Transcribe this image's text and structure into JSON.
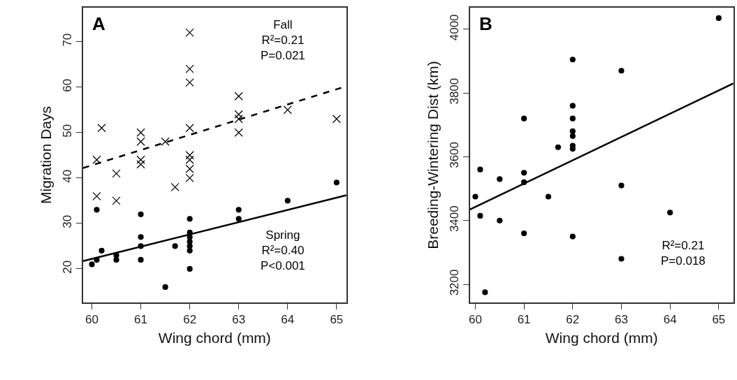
{
  "chart_data": [
    {
      "type": "scatter",
      "xlabel": "Wing chord (mm)",
      "ylabel": "Migration Days",
      "xlim": [
        59.82,
        65.2
      ],
      "ylim": [
        12.6,
        77.5
      ],
      "xticks": [
        60,
        61,
        62,
        63,
        64,
        65
      ],
      "yticks": [
        20,
        30,
        40,
        50,
        60,
        70
      ],
      "annotations": [
        "A",
        "Fall\nR²=0.21\nP=0.021",
        "Spring\nR²=0.40\nP<0.001"
      ],
      "series": [
        {
          "marker": "cross",
          "color": "#000000",
          "x": [
            60.1,
            60.1,
            60.2,
            60.5,
            60.5,
            61,
            61,
            61,
            61,
            61.5,
            61.7,
            62,
            62,
            62,
            62,
            62,
            62,
            62,
            62,
            63,
            63,
            63,
            63,
            64,
            65
          ],
          "values": [
            44,
            36,
            51,
            41,
            35,
            50,
            48,
            44,
            43,
            48,
            38,
            72,
            64,
            61,
            51,
            45,
            44,
            42,
            40,
            58,
            54,
            53,
            50,
            55,
            53
          ]
        },
        {
          "marker": "circle",
          "color": "#000000",
          "x": [
            60,
            60.1,
            60.1,
            60.2,
            60.5,
            60.5,
            61,
            61,
            61,
            61,
            61.5,
            61.7,
            62,
            62,
            62,
            62,
            62,
            62,
            62,
            63,
            63,
            64,
            65
          ],
          "values": [
            21,
            22,
            33,
            24,
            22,
            23,
            32,
            27,
            25,
            22,
            16,
            25,
            31,
            28,
            27,
            26,
            25,
            24,
            20,
            33,
            31,
            35,
            39
          ]
        },
        {
          "type": "line",
          "line_style": "dashed",
          "color": "#000000",
          "x": [
            59.82,
            65.2
          ],
          "values": [
            42.2,
            60.2
          ]
        },
        {
          "type": "line",
          "line_style": "solid",
          "color": "#000000",
          "x": [
            59.82,
            65.2
          ],
          "values": [
            21.7,
            36.2
          ]
        }
      ]
    },
    {
      "type": "scatter",
      "xlabel": "Wing chord (mm)",
      "ylabel": "Breeding-Wintering Dist (km)",
      "xlim": [
        59.89,
        65.3
      ],
      "ylim": [
        3143,
        4068
      ],
      "xticks": [
        60,
        61,
        62,
        63,
        64,
        65
      ],
      "yticks": [
        3200,
        3400,
        3600,
        3800,
        4000
      ],
      "annotations": [
        "B",
        "R²=0.21\nP=0.018"
      ],
      "series": [
        {
          "marker": "circle",
          "color": "#000000",
          "x": [
            60,
            60.1,
            60.1,
            60.2,
            60.5,
            60.5,
            61,
            61,
            61,
            61,
            61.5,
            61.7,
            62,
            62,
            62,
            62,
            62,
            62,
            62,
            62,
            63,
            63,
            63,
            64,
            65
          ],
          "values": [
            3475,
            3560,
            3415,
            3175,
            3530,
            3400,
            3720,
            3550,
            3520,
            3360,
            3475,
            3630,
            3905,
            3760,
            3720,
            3680,
            3665,
            3635,
            3625,
            3350,
            3870,
            3510,
            3280,
            3425,
            4035
          ]
        },
        {
          "type": "line",
          "line_style": "solid",
          "color": "#000000",
          "x": [
            59.89,
            65.3
          ],
          "values": [
            3435,
            3830
          ]
        }
      ]
    }
  ]
}
